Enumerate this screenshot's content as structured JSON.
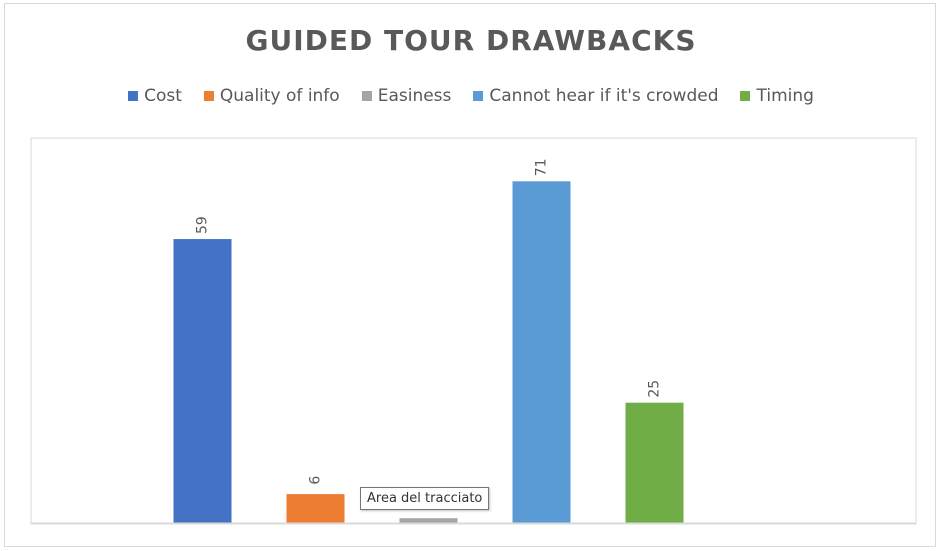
{
  "chart_data": {
    "type": "bar",
    "title": "GUIDED TOUR DRAWBACKS",
    "categories": [
      "Cost",
      "Quality of info",
      "Easiness",
      "Cannot hear if it's crowded",
      "Timing"
    ],
    "values": [
      59,
      6,
      1,
      71,
      25
    ],
    "data_labels": [
      "59",
      "6",
      "",
      "71",
      "25"
    ],
    "colors": [
      "#4472C4",
      "#ED7D31",
      "#A5A5A5",
      "#5B9BD5",
      "#70AD47"
    ],
    "ylim": [
      0,
      80
    ],
    "grid": false,
    "legend_position": "top"
  },
  "tooltip": {
    "text": "Area del tracciato"
  }
}
